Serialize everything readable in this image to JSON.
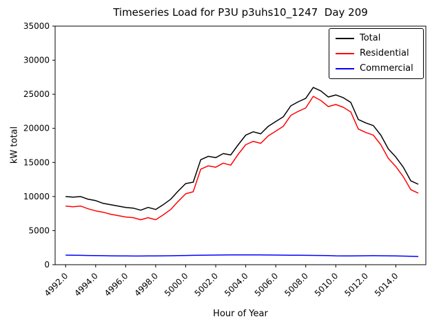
{
  "chart_data": {
    "type": "line",
    "title": "Timeseries Load for P3U p3uhs10_1247  Day 209",
    "xlabel": "Hour of Year",
    "ylabel": "kW total",
    "legend_position": "upper right",
    "grid": false,
    "xlim": [
      4991.3,
      5016.0
    ],
    "ylim": [
      0,
      35000
    ],
    "xticks": [
      4992,
      4994,
      4996,
      4998,
      5000,
      5002,
      5004,
      5006,
      5008,
      5010,
      5012,
      5014
    ],
    "xtick_labels": [
      "4992.0",
      "4994.0",
      "4996.0",
      "4998.0",
      "5000.0",
      "5002.0",
      "5004.0",
      "5006.0",
      "5008.0",
      "5010.0",
      "5012.0",
      "5014.0"
    ],
    "yticks": [
      0,
      5000,
      10000,
      15000,
      20000,
      25000,
      30000,
      35000
    ],
    "ytick_labels": [
      "0",
      "5000",
      "10000",
      "15000",
      "20000",
      "25000",
      "30000",
      "35000"
    ],
    "x": [
      4992.0,
      4992.5,
      4993.0,
      4993.5,
      4994.0,
      4994.5,
      4995.0,
      4995.5,
      4996.0,
      4996.5,
      4997.0,
      4997.5,
      4998.0,
      4998.5,
      4999.0,
      4999.5,
      5000.0,
      5000.5,
      5001.0,
      5001.5,
      5002.0,
      5002.5,
      5003.0,
      5003.5,
      5004.0,
      5004.5,
      5005.0,
      5005.5,
      5006.0,
      5006.5,
      5007.0,
      5007.5,
      5008.0,
      5008.5,
      5009.0,
      5009.5,
      5010.0,
      5010.5,
      5011.0,
      5011.5,
      5012.0,
      5012.5,
      5013.0,
      5013.5,
      5014.0,
      5014.5,
      5015.0,
      5015.5
    ],
    "series": [
      {
        "name": "Total",
        "color": "#000000",
        "values": [
          10000,
          9900,
          10000,
          9600,
          9400,
          9000,
          8800,
          8600,
          8400,
          8300,
          8000,
          8400,
          8100,
          8800,
          9600,
          10800,
          11900,
          12100,
          15400,
          15900,
          15700,
          16300,
          16100,
          17600,
          19000,
          19500,
          19200,
          20300,
          21000,
          21700,
          23300,
          23900,
          24400,
          26000,
          25500,
          24600,
          24900,
          24500,
          23800,
          21300,
          20800,
          20400,
          19000,
          17000,
          15800,
          14300,
          12300,
          11800
        ]
      },
      {
        "name": "Residential",
        "color": "#ff0000",
        "values": [
          8600,
          8500,
          8600,
          8200,
          7900,
          7700,
          7400,
          7200,
          7000,
          6900,
          6600,
          6900,
          6600,
          7300,
          8100,
          9300,
          10400,
          10700,
          14000,
          14500,
          14300,
          14900,
          14600,
          16200,
          17600,
          18100,
          17800,
          18900,
          19600,
          20300,
          21900,
          22500,
          23000,
          24700,
          24100,
          23200,
          23500,
          23100,
          22400,
          19900,
          19400,
          19000,
          17600,
          15600,
          14400,
          12900,
          11000,
          10500
        ]
      },
      {
        "name": "Commercial",
        "color": "#0000ff",
        "values": [
          1400,
          1380,
          1370,
          1350,
          1330,
          1320,
          1300,
          1290,
          1280,
          1270,
          1270,
          1280,
          1290,
          1300,
          1310,
          1330,
          1350,
          1370,
          1390,
          1400,
          1410,
          1420,
          1430,
          1440,
          1440,
          1430,
          1430,
          1420,
          1410,
          1400,
          1390,
          1380,
          1370,
          1360,
          1350,
          1340,
          1300,
          1290,
          1280,
          1300,
          1310,
          1320,
          1310,
          1300,
          1280,
          1260,
          1230,
          1200
        ]
      }
    ]
  }
}
